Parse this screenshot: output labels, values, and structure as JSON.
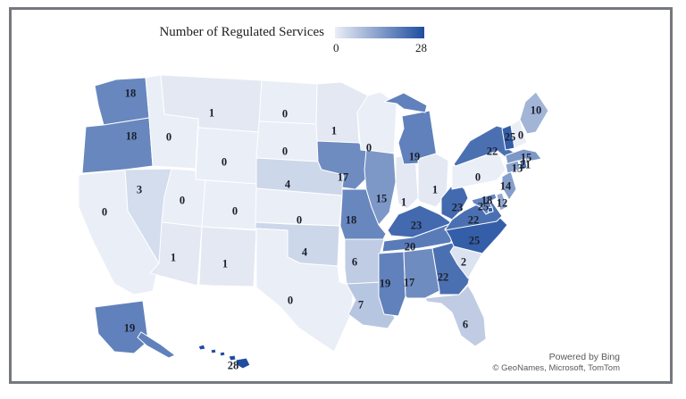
{
  "legend": {
    "title": "Number of Regulated Services",
    "min_label": "0",
    "max_label": "28"
  },
  "attribution": {
    "powered_by": "Powered by Bing",
    "copyright": "© GeoNames, Microsoft, TomTom"
  },
  "colors": {
    "scale_min": "#EAEEF6",
    "scale_max": "#1F4D9F",
    "state_border": "#FFFFFF",
    "label_text": "#1C202C",
    "attribution_text": "#595959",
    "frame_border": "#75787D"
  },
  "chart_data": {
    "type": "choropleth",
    "title": "Number of Regulated Services",
    "legend": {
      "min": 0,
      "max": 28,
      "min_color": "#EAEEF6",
      "max_color": "#1F4D9F",
      "position": "top"
    },
    "states": [
      {
        "abbr": "WA",
        "name": "Washington",
        "value": 18
      },
      {
        "abbr": "OR",
        "name": "Oregon",
        "value": 18
      },
      {
        "abbr": "CA",
        "name": "California",
        "value": 0
      },
      {
        "abbr": "NV",
        "name": "Nevada",
        "value": 3
      },
      {
        "abbr": "ID",
        "name": "Idaho",
        "value": 0
      },
      {
        "abbr": "MT",
        "name": "Montana",
        "value": 1
      },
      {
        "abbr": "WY",
        "name": "Wyoming",
        "value": 0
      },
      {
        "abbr": "UT",
        "name": "Utah",
        "value": 0
      },
      {
        "abbr": "CO",
        "name": "Colorado",
        "value": 0
      },
      {
        "abbr": "AZ",
        "name": "Arizona",
        "value": 1
      },
      {
        "abbr": "NM",
        "name": "New Mexico",
        "value": 1
      },
      {
        "abbr": "ND",
        "name": "North Dakota",
        "value": 0
      },
      {
        "abbr": "SD",
        "name": "South Dakota",
        "value": 0
      },
      {
        "abbr": "NE",
        "name": "Nebraska",
        "value": 4
      },
      {
        "abbr": "KS",
        "name": "Kansas",
        "value": 0
      },
      {
        "abbr": "OK",
        "name": "Oklahoma",
        "value": 4
      },
      {
        "abbr": "TX",
        "name": "Texas",
        "value": 0
      },
      {
        "abbr": "MN",
        "name": "Minnesota",
        "value": 1
      },
      {
        "abbr": "IA",
        "name": "Iowa",
        "value": 17
      },
      {
        "abbr": "MO",
        "name": "Missouri",
        "value": 18
      },
      {
        "abbr": "AR",
        "name": "Arkansas",
        "value": 6
      },
      {
        "abbr": "LA",
        "name": "Louisiana",
        "value": 7
      },
      {
        "abbr": "WI",
        "name": "Wisconsin",
        "value": 0
      },
      {
        "abbr": "IL",
        "name": "Illinois",
        "value": 15
      },
      {
        "abbr": "IN",
        "name": "Indiana",
        "value": 1
      },
      {
        "abbr": "MI",
        "name": "Michigan",
        "value": 19
      },
      {
        "abbr": "OH",
        "name": "Ohio",
        "value": 1
      },
      {
        "abbr": "KY",
        "name": "Kentucky",
        "value": 23
      },
      {
        "abbr": "TN",
        "name": "Tennessee",
        "value": 20
      },
      {
        "abbr": "MS",
        "name": "Mississippi",
        "value": 19
      },
      {
        "abbr": "AL",
        "name": "Alabama",
        "value": 17
      },
      {
        "abbr": "GA",
        "name": "Georgia",
        "value": 22
      },
      {
        "abbr": "FL",
        "name": "Florida",
        "value": 6
      },
      {
        "abbr": "SC",
        "name": "South Carolina",
        "value": 2
      },
      {
        "abbr": "NC",
        "name": "North Carolina",
        "value": 25
      },
      {
        "abbr": "VA",
        "name": "Virginia",
        "value": 22
      },
      {
        "abbr": "WV",
        "name": "West Virginia",
        "value": 23
      },
      {
        "abbr": "PA",
        "name": "Pennsylvania",
        "value": 0
      },
      {
        "abbr": "NY",
        "name": "New York",
        "value": 22
      },
      {
        "abbr": "NJ",
        "name": "New Jersey",
        "value": 14
      },
      {
        "abbr": "DE",
        "name": "Delaware",
        "value": 12
      },
      {
        "abbr": "MD",
        "name": "Maryland",
        "value": 18
      },
      {
        "abbr": "DC",
        "name": "District of Columbia",
        "value": 25
      },
      {
        "abbr": "VT",
        "name": "Vermont",
        "value": 25
      },
      {
        "abbr": "NH",
        "name": "New Hampshire",
        "value": 0
      },
      {
        "abbr": "ME",
        "name": "Maine",
        "value": 10
      },
      {
        "abbr": "MA",
        "name": "Massachusetts",
        "value": 15
      },
      {
        "abbr": "CT",
        "name": "Connecticut",
        "value": 13
      },
      {
        "abbr": "RI",
        "name": "Rhode Island",
        "value": 21
      },
      {
        "abbr": "AK",
        "name": "Alaska",
        "value": 19
      },
      {
        "abbr": "HI",
        "name": "Hawaii",
        "value": 28
      }
    ]
  }
}
